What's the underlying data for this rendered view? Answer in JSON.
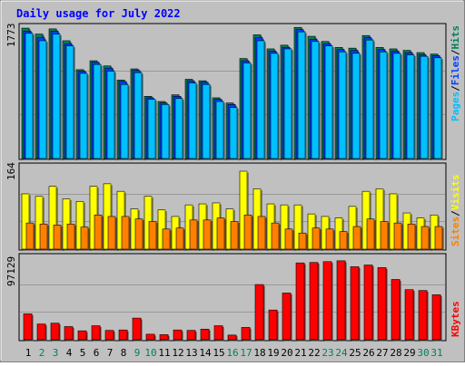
{
  "title": "Daily usage for July 2022",
  "colors": {
    "background": "#c0c0c0",
    "plot_background": "#c0c0c0",
    "grid": "#808080",
    "title": "#0000ff",
    "hits": "#00805c",
    "files": "#0040ff",
    "pages": "#00c0ff",
    "visits": "#ffff00",
    "sites": "#ff8000",
    "kbytes": "#ff0000",
    "weekend_day": "#00805c",
    "weekday": "#000000"
  },
  "chart_data": [
    {
      "type": "bar",
      "panel": "hits-files-pages",
      "ymax_label": "1773",
      "ylim": [
        0,
        1773
      ],
      "legend": {
        "pages": "Pages",
        "sep1": "/",
        "files": "Files",
        "sep2": "/",
        "hits": "Hits"
      },
      "categories": [
        "1",
        "2",
        "3",
        "4",
        "5",
        "6",
        "7",
        "8",
        "9",
        "10",
        "11",
        "12",
        "13",
        "14",
        "15",
        "16",
        "17",
        "18",
        "19",
        "20",
        "21",
        "22",
        "23",
        "24",
        "25",
        "26",
        "27",
        "28",
        "29",
        "30",
        "31"
      ],
      "series": [
        {
          "name": "Hits",
          "values": [
            1760,
            1680,
            1750,
            1590,
            1200,
            1320,
            1250,
            1060,
            1210,
            840,
            770,
            860,
            1070,
            1050,
            820,
            750,
            1350,
            1670,
            1480,
            1530,
            1770,
            1650,
            1580,
            1500,
            1490,
            1660,
            1500,
            1480,
            1460,
            1430,
            1410
          ]
        },
        {
          "name": "Files",
          "values": [
            1720,
            1630,
            1720,
            1550,
            1180,
            1300,
            1220,
            1040,
            1190,
            820,
            750,
            840,
            1050,
            1030,
            800,
            730,
            1320,
            1630,
            1450,
            1500,
            1740,
            1610,
            1550,
            1470,
            1460,
            1630,
            1470,
            1450,
            1430,
            1400,
            1390
          ]
        },
        {
          "name": "Pages",
          "values": [
            1690,
            1590,
            1680,
            1520,
            1150,
            1270,
            1180,
            1000,
            1160,
            800,
            730,
            810,
            1020,
            1000,
            770,
            690,
            1290,
            1590,
            1420,
            1480,
            1710,
            1580,
            1520,
            1440,
            1420,
            1600,
            1440,
            1420,
            1400,
            1380,
            1360
          ]
        }
      ]
    },
    {
      "type": "bar",
      "panel": "visits-sites",
      "ymax_label": "164",
      "ylim": [
        0,
        164
      ],
      "legend": {
        "sites": "Sites",
        "sep": "/",
        "visits": "Visits"
      },
      "categories": [
        "1",
        "2",
        "3",
        "4",
        "5",
        "6",
        "7",
        "8",
        "9",
        "10",
        "11",
        "12",
        "13",
        "14",
        "15",
        "16",
        "17",
        "18",
        "19",
        "20",
        "21",
        "22",
        "23",
        "24",
        "25",
        "26",
        "27",
        "28",
        "29",
        "30",
        "31"
      ],
      "series": [
        {
          "name": "Visits",
          "values": [
            110,
            105,
            125,
            100,
            95,
            125,
            130,
            115,
            80,
            105,
            78,
            65,
            88,
            90,
            92,
            80,
            155,
            120,
            90,
            88,
            88,
            70,
            65,
            62,
            85,
            115,
            120,
            110,
            72,
            62,
            68
          ]
        },
        {
          "name": "Sites",
          "values": [
            52,
            50,
            48,
            50,
            44,
            68,
            65,
            65,
            60,
            55,
            40,
            42,
            58,
            58,
            62,
            55,
            68,
            65,
            52,
            40,
            32,
            42,
            40,
            35,
            45,
            60,
            55,
            52,
            50,
            45,
            45
          ]
        }
      ]
    },
    {
      "type": "bar",
      "panel": "kbytes",
      "ymax_label": "97129",
      "ylim": [
        0,
        97129
      ],
      "legend": {
        "kbytes": "KBytes"
      },
      "categories": [
        "1",
        "2",
        "3",
        "4",
        "5",
        "6",
        "7",
        "8",
        "9",
        "10",
        "11",
        "12",
        "13",
        "14",
        "15",
        "16",
        "17",
        "18",
        "19",
        "20",
        "21",
        "22",
        "23",
        "24",
        "25",
        "26",
        "27",
        "28",
        "29",
        "30",
        "31"
      ],
      "series": [
        {
          "name": "KBytes",
          "values": [
            30500,
            18500,
            19500,
            15500,
            10500,
            16500,
            11000,
            11500,
            25500,
            6500,
            6000,
            11500,
            11000,
            12500,
            16500,
            5500,
            14500,
            65000,
            35000,
            55000,
            90500,
            91000,
            92000,
            93000,
            86000,
            88000,
            85000,
            71000,
            59000,
            58000,
            53000
          ]
        }
      ]
    }
  ],
  "days": [
    "1",
    "2",
    "3",
    "4",
    "5",
    "6",
    "7",
    "8",
    "9",
    "10",
    "11",
    "12",
    "13",
    "14",
    "15",
    "16",
    "17",
    "18",
    "19",
    "20",
    "21",
    "22",
    "23",
    "24",
    "25",
    "26",
    "27",
    "28",
    "29",
    "30",
    "31"
  ],
  "weekend_days": [
    2,
    3,
    9,
    10,
    16,
    17,
    23,
    24,
    30,
    31
  ]
}
